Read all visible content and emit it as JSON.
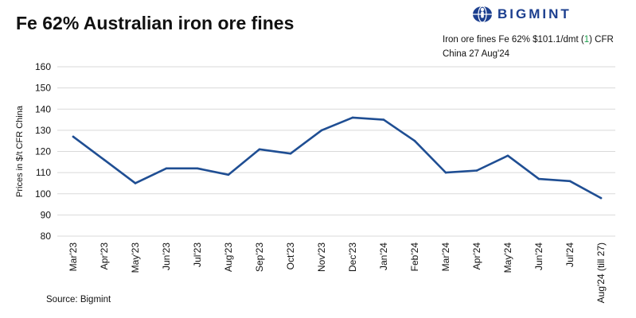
{
  "header": {
    "title": "Fe 62% Australian iron ore fines",
    "subtitle_pre": "Iron ore fines Fe 62% $101.1/dmt (",
    "subtitle_highlight": "1",
    "subtitle_post": ") CFR China 27 Aug'24",
    "brand": "BIGMINT",
    "logo_icon": "globe-person-icon"
  },
  "footer": {
    "source": "Source: Bigmint"
  },
  "colors": {
    "line": "#1f4e93",
    "grid": "#d9d9d9",
    "highlight": "#1a9e4a",
    "brand": "#1c3f8f"
  },
  "chart_data": {
    "type": "line",
    "title": "Fe 62% Australian iron ore fines",
    "xlabel": "",
    "ylabel": "Prices in $/t CFR China",
    "ylim": [
      80,
      160
    ],
    "yticks": [
      80,
      90,
      100,
      110,
      120,
      130,
      140,
      150,
      160
    ],
    "grid": true,
    "categories": [
      "Mar'23",
      "Apr'23",
      "May'23",
      "Jun'23",
      "Jul'23",
      "Aug'23",
      "Sep'23",
      "Oct'23",
      "Nov'23",
      "Dec'23",
      "Jan'24",
      "Feb'24",
      "Mar'24",
      "Apr'24",
      "May'24",
      "Jun'24",
      "Jul'24",
      "Aug'24 (till 27)"
    ],
    "series": [
      {
        "values": [
          127,
          116,
          105,
          112,
          112,
          109,
          121,
          119,
          130,
          136,
          135,
          125,
          110,
          111,
          118,
          107,
          106,
          98
        ]
      }
    ]
  }
}
